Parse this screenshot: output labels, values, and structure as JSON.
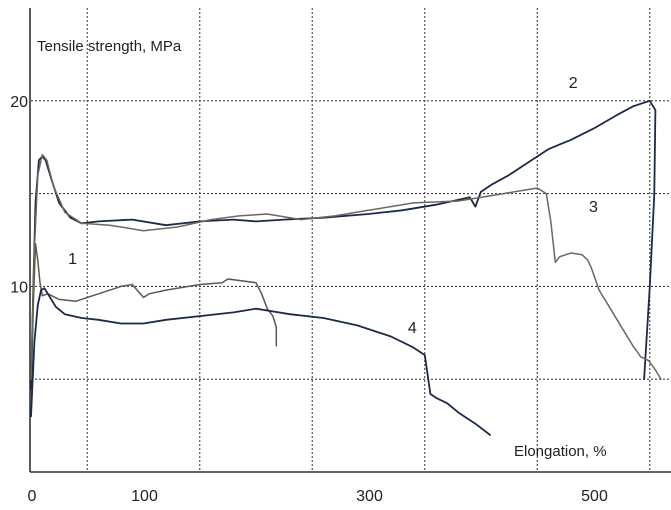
{
  "chart_data": {
    "type": "line",
    "title": "",
    "xlabel": "Elongation, %",
    "ylabel": "Tensile strength, MPa",
    "xlim": [
      0,
      560
    ],
    "ylim": [
      0,
      25
    ],
    "grid": true,
    "x_ticks": [
      {
        "value": 0,
        "label": "0"
      },
      {
        "value": 100,
        "label": "100"
      },
      {
        "value": 300,
        "label": "300"
      },
      {
        "value": 500,
        "label": "500"
      }
    ],
    "y_ticks": [
      {
        "value": 10,
        "label": "10"
      },
      {
        "value": 20,
        "label": "20"
      }
    ],
    "series": [
      {
        "name": "1",
        "color": "#5a5a48",
        "width": 1.5,
        "label_at": [
          33,
          11.2
        ],
        "points": [
          [
            0,
            4
          ],
          [
            2,
            9
          ],
          [
            4,
            12.3
          ],
          [
            6,
            11.4
          ],
          [
            8,
            10.2
          ],
          [
            10,
            9.5
          ],
          [
            15,
            9.6
          ],
          [
            25,
            9.3
          ],
          [
            40,
            9.2
          ],
          [
            60,
            9.6
          ],
          [
            80,
            10.0
          ],
          [
            90,
            10.1
          ],
          [
            100,
            9.4
          ],
          [
            105,
            9.6
          ],
          [
            120,
            9.8
          ],
          [
            150,
            10.1
          ],
          [
            170,
            10.2
          ],
          [
            175,
            10.4
          ],
          [
            200,
            10.2
          ],
          [
            205,
            9.6
          ],
          [
            210,
            8.8
          ],
          [
            215,
            8.4
          ],
          [
            218,
            7.8
          ],
          [
            218,
            6.8
          ]
        ]
      },
      {
        "name": "2",
        "color": "#1c2a4a",
        "width": 1.8,
        "label_at": [
          478,
          20.7
        ],
        "points": [
          [
            0,
            4.5
          ],
          [
            2,
            10
          ],
          [
            4,
            14.5
          ],
          [
            7,
            16.8
          ],
          [
            10,
            17.0
          ],
          [
            13,
            16.8
          ],
          [
            18,
            15.8
          ],
          [
            25,
            14.5
          ],
          [
            35,
            13.7
          ],
          [
            45,
            13.4
          ],
          [
            60,
            13.5
          ],
          [
            90,
            13.6
          ],
          [
            120,
            13.3
          ],
          [
            150,
            13.5
          ],
          [
            180,
            13.6
          ],
          [
            200,
            13.5
          ],
          [
            225,
            13.6
          ],
          [
            260,
            13.7
          ],
          [
            300,
            13.9
          ],
          [
            330,
            14.1
          ],
          [
            360,
            14.4
          ],
          [
            390,
            14.8
          ],
          [
            395,
            14.3
          ],
          [
            400,
            15.1
          ],
          [
            410,
            15.5
          ],
          [
            425,
            16.0
          ],
          [
            440,
            16.6
          ],
          [
            460,
            17.4
          ],
          [
            480,
            17.9
          ],
          [
            500,
            18.5
          ],
          [
            520,
            19.2
          ],
          [
            535,
            19.7
          ],
          [
            550,
            20.0
          ],
          [
            555,
            19.5
          ],
          [
            554,
            15
          ],
          [
            550,
            10
          ],
          [
            545,
            5
          ]
        ]
      },
      {
        "name": "3",
        "color": "#6a6a5a",
        "width": 1.5,
        "label_at": [
          496,
          14.0
        ],
        "points": [
          [
            0,
            5
          ],
          [
            3,
            12
          ],
          [
            6,
            16
          ],
          [
            10,
            17.1
          ],
          [
            14,
            16.8
          ],
          [
            20,
            15.4
          ],
          [
            30,
            14.0
          ],
          [
            45,
            13.4
          ],
          [
            70,
            13.3
          ],
          [
            100,
            13.0
          ],
          [
            130,
            13.2
          ],
          [
            160,
            13.6
          ],
          [
            185,
            13.8
          ],
          [
            210,
            13.9
          ],
          [
            240,
            13.6
          ],
          [
            270,
            13.8
          ],
          [
            300,
            14.1
          ],
          [
            340,
            14.5
          ],
          [
            380,
            14.6
          ],
          [
            420,
            15.0
          ],
          [
            450,
            15.3
          ],
          [
            458,
            15.0
          ],
          [
            462,
            13.5
          ],
          [
            466,
            11.3
          ],
          [
            470,
            11.6
          ],
          [
            480,
            11.8
          ],
          [
            490,
            11.7
          ],
          [
            495,
            11.4
          ],
          [
            498,
            11.0
          ],
          [
            505,
            9.8
          ],
          [
            515,
            8.8
          ],
          [
            525,
            7.8
          ],
          [
            535,
            6.8
          ],
          [
            542,
            6.2
          ],
          [
            549,
            6.0
          ],
          [
            555,
            5.5
          ],
          [
            560,
            5.0
          ]
        ]
      },
      {
        "name": "4",
        "color": "#1c2a4a",
        "width": 1.8,
        "label_at": [
          335,
          7.5
        ],
        "points": [
          [
            0,
            3
          ],
          [
            3,
            7
          ],
          [
            6,
            9.0
          ],
          [
            9,
            9.8
          ],
          [
            12,
            9.9
          ],
          [
            16,
            9.5
          ],
          [
            22,
            8.9
          ],
          [
            30,
            8.5
          ],
          [
            45,
            8.3
          ],
          [
            60,
            8.2
          ],
          [
            80,
            8.0
          ],
          [
            100,
            8.0
          ],
          [
            120,
            8.2
          ],
          [
            150,
            8.4
          ],
          [
            180,
            8.6
          ],
          [
            200,
            8.8
          ],
          [
            210,
            8.7
          ],
          [
            230,
            8.5
          ],
          [
            260,
            8.3
          ],
          [
            290,
            7.9
          ],
          [
            320,
            7.3
          ],
          [
            340,
            6.7
          ],
          [
            350,
            6.3
          ],
          [
            355,
            4.2
          ],
          [
            360,
            4.0
          ],
          [
            370,
            3.7
          ],
          [
            380,
            3.2
          ],
          [
            395,
            2.6
          ],
          [
            408,
            2.0
          ]
        ]
      }
    ]
  }
}
